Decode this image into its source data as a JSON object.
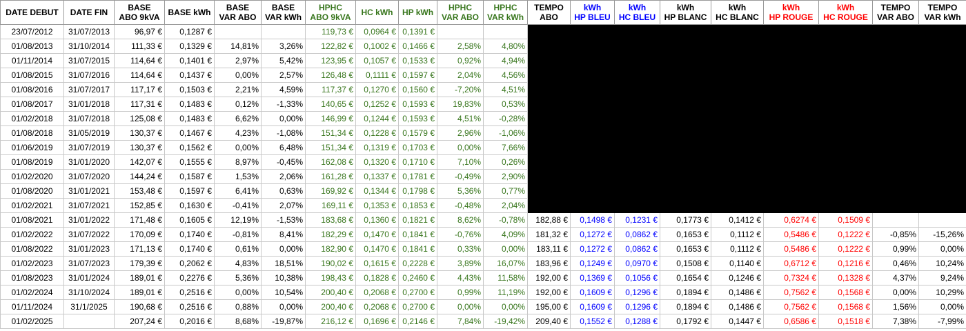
{
  "columns": [
    {
      "lines": [
        "DATE DEBUT"
      ],
      "color": "#000000"
    },
    {
      "lines": [
        "DATE FIN"
      ],
      "color": "#000000"
    },
    {
      "lines": [
        "BASE",
        "ABO 9kVA"
      ],
      "color": "#000000"
    },
    {
      "lines": [
        "BASE kWh"
      ],
      "color": "#000000"
    },
    {
      "lines": [
        "BASE",
        "VAR ABO"
      ],
      "color": "#000000"
    },
    {
      "lines": [
        "BASE",
        "VAR kWh"
      ],
      "color": "#000000"
    },
    {
      "lines": [
        "HPHC",
        "ABO 9kVA"
      ],
      "color": "#38761d"
    },
    {
      "lines": [
        "HC kWh"
      ],
      "color": "#38761d"
    },
    {
      "lines": [
        "HP kWh"
      ],
      "color": "#38761d"
    },
    {
      "lines": [
        "HPHC",
        "VAR ABO"
      ],
      "color": "#38761d"
    },
    {
      "lines": [
        "HPHC",
        "VAR kWh"
      ],
      "color": "#38761d"
    },
    {
      "lines": [
        "TEMPO",
        "ABO"
      ],
      "color": "#000000"
    },
    {
      "lines": [
        "kWh",
        "HP BLEU"
      ],
      "color": "#0000ff"
    },
    {
      "lines": [
        "kWh",
        "HC BLEU"
      ],
      "color": "#0000ff"
    },
    {
      "lines": [
        "kWh",
        "HP BLANC"
      ],
      "color": "#000000"
    },
    {
      "lines": [
        "kWh",
        "HC BLANC"
      ],
      "color": "#000000"
    },
    {
      "lines": [
        "kWh",
        "HP ROUGE"
      ],
      "color": "#ff0000"
    },
    {
      "lines": [
        "kWh",
        "HC ROUGE"
      ],
      "color": "#ff0000"
    },
    {
      "lines": [
        "TEMPO",
        "VAR ABO"
      ],
      "color": "#000000"
    },
    {
      "lines": [
        "TEMPO",
        "VAR kWh"
      ],
      "color": "#000000"
    }
  ],
  "rows": [
    [
      "23/07/2012",
      "31/07/2013",
      "96,97 €",
      "0,1287 €",
      null,
      null,
      "119,73 €",
      "0,0964 €",
      "0,1391 €",
      null,
      null,
      null,
      null,
      null,
      null,
      null,
      null,
      null,
      null,
      null
    ],
    [
      "01/08/2013",
      "31/10/2014",
      "111,33 €",
      "0,1329 €",
      "14,81%",
      "3,26%",
      "122,82 €",
      "0,1002 €",
      "0,1466 €",
      "2,58%",
      "4,80%",
      null,
      null,
      null,
      null,
      null,
      null,
      null,
      null,
      null
    ],
    [
      "01/11/2014",
      "31/07/2015",
      "114,64 €",
      "0,1401 €",
      "2,97%",
      "5,42%",
      "123,95 €",
      "0,1057 €",
      "0,1533 €",
      "0,92%",
      "4,94%",
      null,
      null,
      null,
      null,
      null,
      null,
      null,
      null,
      null
    ],
    [
      "01/08/2015",
      "31/07/2016",
      "114,64 €",
      "0,1437 €",
      "0,00%",
      "2,57%",
      "126,48 €",
      "0,1111 €",
      "0,1597 €",
      "2,04%",
      "4,56%",
      null,
      null,
      null,
      null,
      null,
      null,
      null,
      null,
      null
    ],
    [
      "01/08/2016",
      "31/07/2017",
      "117,17 €",
      "0,1503 €",
      "2,21%",
      "4,59%",
      "117,37 €",
      "0,1270 €",
      "0,1560 €",
      "-7,20%",
      "4,51%",
      null,
      null,
      null,
      null,
      null,
      null,
      null,
      null,
      null
    ],
    [
      "01/08/2017",
      "31/01/2018",
      "117,31 €",
      "0,1483 €",
      "0,12%",
      "-1,33%",
      "140,65 €",
      "0,1252 €",
      "0,1593 €",
      "19,83%",
      "0,53%",
      null,
      null,
      null,
      null,
      null,
      null,
      null,
      null,
      null
    ],
    [
      "01/02/2018",
      "31/07/2018",
      "125,08 €",
      "0,1483 €",
      "6,62%",
      "0,00%",
      "146,99 €",
      "0,1244 €",
      "0,1593 €",
      "4,51%",
      "-0,28%",
      null,
      null,
      null,
      null,
      null,
      null,
      null,
      null,
      null
    ],
    [
      "01/08/2018",
      "31/05/2019",
      "130,37 €",
      "0,1467 €",
      "4,23%",
      "-1,08%",
      "151,34 €",
      "0,1228 €",
      "0,1579 €",
      "2,96%",
      "-1,06%",
      null,
      null,
      null,
      null,
      null,
      null,
      null,
      null,
      null
    ],
    [
      "01/06/2019",
      "31/07/2019",
      "130,37 €",
      "0,1562 €",
      "0,00%",
      "6,48%",
      "151,34 €",
      "0,1319 €",
      "0,1703 €",
      "0,00%",
      "7,66%",
      null,
      null,
      null,
      null,
      null,
      null,
      null,
      null,
      null
    ],
    [
      "01/08/2019",
      "31/01/2020",
      "142,07 €",
      "0,1555 €",
      "8,97%",
      "-0,45%",
      "162,08 €",
      "0,1320 €",
      "0,1710 €",
      "7,10%",
      "0,26%",
      null,
      null,
      null,
      null,
      null,
      null,
      null,
      null,
      null
    ],
    [
      "01/02/2020",
      "31/07/2020",
      "144,24 €",
      "0,1587 €",
      "1,53%",
      "2,06%",
      "161,28 €",
      "0,1337 €",
      "0,1781 €",
      "-0,49%",
      "2,90%",
      null,
      null,
      null,
      null,
      null,
      null,
      null,
      null,
      null
    ],
    [
      "01/08/2020",
      "31/01/2021",
      "153,48 €",
      "0,1597 €",
      "6,41%",
      "0,63%",
      "169,92 €",
      "0,1344 €",
      "0,1798 €",
      "5,36%",
      "0,77%",
      null,
      null,
      null,
      null,
      null,
      null,
      null,
      null,
      null
    ],
    [
      "01/02/2021",
      "31/07/2021",
      "152,85 €",
      "0,1630 €",
      "-0,41%",
      "2,07%",
      "169,11 €",
      "0,1353 €",
      "0,1853 €",
      "-0,48%",
      "2,04%",
      null,
      null,
      null,
      null,
      null,
      null,
      null,
      null,
      null
    ],
    [
      "01/08/2021",
      "31/01/2022",
      "171,48 €",
      "0,1605 €",
      "12,19%",
      "-1,53%",
      "183,68 €",
      "0,1360 €",
      "0,1821 €",
      "8,62%",
      "-0,78%",
      "182,88 €",
      "0,1498 €",
      "0,1231 €",
      "0,1773 €",
      "0,1412 €",
      "0,6274 €",
      "0,1509 €",
      null,
      null
    ],
    [
      "01/02/2022",
      "31/07/2022",
      "170,09 €",
      "0,1740 €",
      "-0,81%",
      "8,41%",
      "182,29 €",
      "0,1470 €",
      "0,1841 €",
      "-0,76%",
      "4,09%",
      "181,32 €",
      "0,1272 €",
      "0,0862 €",
      "0,1653 €",
      "0,1112 €",
      "0,5486 €",
      "0,1222 €",
      "-0,85%",
      "-15,26%"
    ],
    [
      "01/08/2022",
      "31/01/2023",
      "171,13 €",
      "0,1740 €",
      "0,61%",
      "0,00%",
      "182,90 €",
      "0,1470 €",
      "0,1841 €",
      "0,33%",
      "0,00%",
      "183,11 €",
      "0,1272 €",
      "0,0862 €",
      "0,1653 €",
      "0,1112 €",
      "0,5486 €",
      "0,1222 €",
      "0,99%",
      "0,00%"
    ],
    [
      "01/02/2023",
      "31/07/2023",
      "179,39 €",
      "0,2062 €",
      "4,83%",
      "18,51%",
      "190,02 €",
      "0,1615 €",
      "0,2228 €",
      "3,89%",
      "16,07%",
      "183,96 €",
      "0,1249 €",
      "0,0970 €",
      "0,1508 €",
      "0,1140 €",
      "0,6712 €",
      "0,1216 €",
      "0,46%",
      "10,24%"
    ],
    [
      "01/08/2023",
      "31/01/2024",
      "189,01 €",
      "0,2276 €",
      "5,36%",
      "10,38%",
      "198,43 €",
      "0,1828 €",
      "0,2460 €",
      "4,43%",
      "11,58%",
      "192,00 €",
      "0,1369 €",
      "0,1056 €",
      "0,1654 €",
      "0,1246 €",
      "0,7324 €",
      "0,1328 €",
      "4,37%",
      "9,24%"
    ],
    [
      "01/02/2024",
      "31/10/2024",
      "189,01 €",
      "0,2516 €",
      "0,00%",
      "10,54%",
      "200,40 €",
      "0,2068 €",
      "0,2700 €",
      "0,99%",
      "11,19%",
      "192,00 €",
      "0,1609 €",
      "0,1296 €",
      "0,1894 €",
      "0,1486 €",
      "0,7562 €",
      "0,1568 €",
      "0,00%",
      "10,29%"
    ],
    [
      "01/11/2024",
      "31/1/2025",
      "190,68 €",
      "0,2516 €",
      "0,88%",
      "0,00%",
      "200,40 €",
      "0,2068 €",
      "0,2700 €",
      "0,00%",
      "0,00%",
      "195,00 €",
      "0,1609 €",
      "0,1296 €",
      "0,1894 €",
      "0,1486 €",
      "0,7562 €",
      "0,1568 €",
      "1,56%",
      "0,00%"
    ],
    [
      "01/02/2025",
      null,
      "207,24 €",
      "0,2016 €",
      "8,68%",
      "-19,87%",
      "216,12 €",
      "0,1696 €",
      "0,2146 €",
      "7,84%",
      "-19,42%",
      "209,40 €",
      "0,1552 €",
      "0,1288 €",
      "0,1792 €",
      "0,1447 €",
      "0,6586 €",
      "0,1518 €",
      "7,38%",
      "-7,99%"
    ]
  ]
}
